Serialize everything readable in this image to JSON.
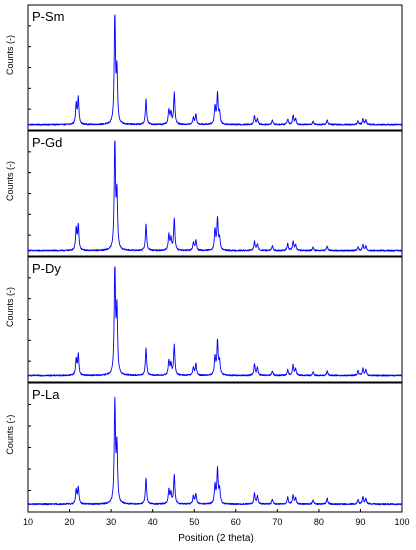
{
  "chart_data": {
    "type": "line",
    "xlabel": "Position (2 theta)",
    "x_ticks": [
      10,
      20,
      30,
      40,
      50,
      60,
      70,
      80,
      90,
      100
    ],
    "xlim": [
      10,
      100
    ],
    "ylim": [
      0,
      1
    ],
    "line_color": "#0000ff",
    "grid": false,
    "legend": "none",
    "peak_width_deg": 0.18,
    "panels": [
      {
        "name": "P-Sm",
        "ylabel": "Counts (-)",
        "baseline": 0.03,
        "peaks": [
          [
            21.6,
            0.18
          ],
          [
            22.1,
            0.23
          ],
          [
            30.9,
            0.97
          ],
          [
            31.4,
            0.45
          ],
          [
            38.4,
            0.22
          ],
          [
            43.9,
            0.13
          ],
          [
            44.4,
            0.1
          ],
          [
            45.2,
            0.28
          ],
          [
            49.8,
            0.06
          ],
          [
            50.4,
            0.09
          ],
          [
            55.0,
            0.16
          ],
          [
            55.6,
            0.27
          ],
          [
            56.1,
            0.1
          ],
          [
            64.5,
            0.08
          ],
          [
            65.2,
            0.05
          ],
          [
            68.8,
            0.04
          ],
          [
            72.5,
            0.05
          ],
          [
            73.8,
            0.08
          ],
          [
            74.4,
            0.05
          ],
          [
            78.6,
            0.03
          ],
          [
            82.0,
            0.04
          ],
          [
            89.4,
            0.03
          ],
          [
            90.6,
            0.05
          ],
          [
            91.3,
            0.04
          ]
        ]
      },
      {
        "name": "P-Gd",
        "ylabel": "Counts (-)",
        "baseline": 0.03,
        "peaks": [
          [
            21.6,
            0.19
          ],
          [
            22.1,
            0.22
          ],
          [
            30.9,
            0.97
          ],
          [
            31.4,
            0.48
          ],
          [
            38.4,
            0.23
          ],
          [
            43.9,
            0.14
          ],
          [
            44.4,
            0.1
          ],
          [
            45.2,
            0.28
          ],
          [
            49.8,
            0.07
          ],
          [
            50.4,
            0.09
          ],
          [
            55.0,
            0.18
          ],
          [
            55.6,
            0.28
          ],
          [
            56.1,
            0.1
          ],
          [
            64.5,
            0.08
          ],
          [
            65.2,
            0.06
          ],
          [
            68.8,
            0.04
          ],
          [
            72.5,
            0.06
          ],
          [
            73.8,
            0.08
          ],
          [
            74.4,
            0.05
          ],
          [
            78.6,
            0.03
          ],
          [
            82.0,
            0.04
          ],
          [
            89.4,
            0.03
          ],
          [
            90.6,
            0.05
          ],
          [
            91.3,
            0.04
          ]
        ]
      },
      {
        "name": "P-Dy",
        "ylabel": "Counts (-)",
        "baseline": 0.04,
        "peaks": [
          [
            21.6,
            0.14
          ],
          [
            22.1,
            0.18
          ],
          [
            30.9,
            0.96
          ],
          [
            31.4,
            0.56
          ],
          [
            38.4,
            0.24
          ],
          [
            43.9,
            0.13
          ],
          [
            44.4,
            0.1
          ],
          [
            45.2,
            0.27
          ],
          [
            49.8,
            0.07
          ],
          [
            50.4,
            0.1
          ],
          [
            55.0,
            0.16
          ],
          [
            55.6,
            0.3
          ],
          [
            56.1,
            0.12
          ],
          [
            64.5,
            0.1
          ],
          [
            65.2,
            0.07
          ],
          [
            68.8,
            0.04
          ],
          [
            72.5,
            0.05
          ],
          [
            73.8,
            0.09
          ],
          [
            74.4,
            0.06
          ],
          [
            78.6,
            0.03
          ],
          [
            82.0,
            0.04
          ],
          [
            89.4,
            0.04
          ],
          [
            90.6,
            0.06
          ],
          [
            91.3,
            0.05
          ]
        ]
      },
      {
        "name": "P-La",
        "ylabel": "Counts (-)",
        "baseline": 0.05,
        "peaks": [
          [
            21.6,
            0.12
          ],
          [
            22.1,
            0.14
          ],
          [
            30.9,
            0.86
          ],
          [
            31.4,
            0.48
          ],
          [
            38.4,
            0.22
          ],
          [
            43.9,
            0.12
          ],
          [
            44.4,
            0.09
          ],
          [
            45.2,
            0.25
          ],
          [
            49.8,
            0.07
          ],
          [
            50.4,
            0.09
          ],
          [
            55.0,
            0.16
          ],
          [
            55.6,
            0.29
          ],
          [
            56.1,
            0.12
          ],
          [
            64.5,
            0.09
          ],
          [
            65.2,
            0.07
          ],
          [
            68.8,
            0.04
          ],
          [
            72.5,
            0.06
          ],
          [
            73.8,
            0.08
          ],
          [
            74.4,
            0.05
          ],
          [
            78.6,
            0.04
          ],
          [
            82.0,
            0.05
          ],
          [
            89.4,
            0.04
          ],
          [
            90.6,
            0.06
          ],
          [
            91.3,
            0.05
          ]
        ]
      }
    ]
  }
}
